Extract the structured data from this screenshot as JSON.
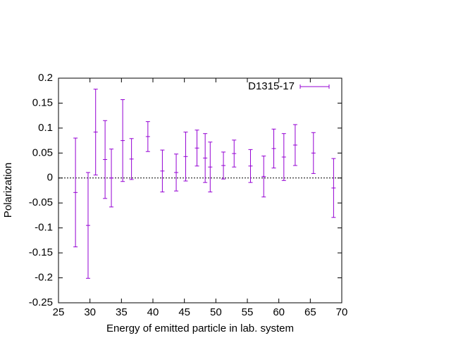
{
  "chart_data": {
    "type": "errorbar",
    "xlabel": "Energy of emitted particle in lab. system",
    "ylabel": "Polarization",
    "series": [
      {
        "name": "D1315-17",
        "color": "#9400d3",
        "x": [
          27.7,
          29.7,
          30.9,
          32.4,
          33.4,
          35.2,
          36.6,
          39.2,
          41.5,
          43.7,
          45.2,
          47.0,
          48.3,
          49.1,
          51.2,
          52.9,
          55.5,
          57.6,
          59.2,
          60.8,
          62.6,
          65.5,
          68.7
        ],
        "values": [
          -0.029,
          -0.095,
          0.092,
          0.037,
          0.0,
          0.075,
          0.038,
          0.083,
          0.014,
          0.011,
          0.043,
          0.06,
          0.04,
          0.022,
          0.025,
          0.049,
          0.024,
          0.003,
          0.059,
          0.042,
          0.066,
          0.05,
          -0.02
        ],
        "errors": [
          0.109,
          0.106,
          0.086,
          0.078,
          0.058,
          0.082,
          0.041,
          0.03,
          0.042,
          0.037,
          0.049,
          0.036,
          0.049,
          0.05,
          0.027,
          0.027,
          0.033,
          0.041,
          0.039,
          0.047,
          0.041,
          0.041,
          0.059
        ]
      }
    ],
    "xlim": [
      25,
      70
    ],
    "xticks": [
      25,
      30,
      35,
      40,
      45,
      50,
      55,
      60,
      65,
      70
    ],
    "ylim": [
      -0.25,
      0.2
    ],
    "yticks": [
      -0.25,
      -0.2,
      -0.15,
      -0.1,
      -0.05,
      0,
      0.05,
      0.1,
      0.15,
      0.2
    ],
    "zero_axis": true,
    "legend": "upper right"
  }
}
